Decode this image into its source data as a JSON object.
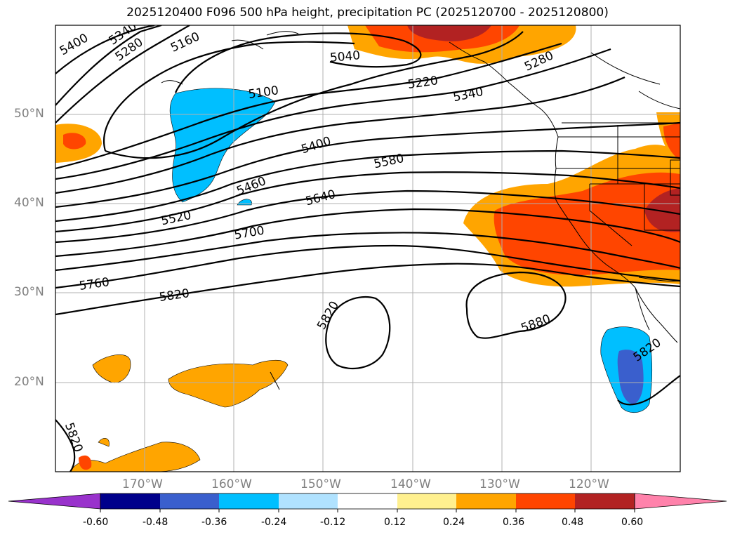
{
  "title": "2025120400 F096 500 hPa height, precipitation PC (2025120700 - 2025120800)",
  "lat_labels": [
    "50°N",
    "40°N",
    "30°N",
    "20°N"
  ],
  "lon_labels": [
    "170°W",
    "160°W",
    "150°W",
    "140°W",
    "130°W",
    "120°W"
  ],
  "colorbar": {
    "ticks": [
      "-0.60",
      "-0.48",
      "-0.36",
      "-0.24",
      "-0.12",
      "0.12",
      "0.24",
      "0.36",
      "0.48",
      "0.60"
    ],
    "colors": [
      "#9932cc",
      "#00008b",
      "#3a5fcd",
      "#00bfff",
      "#b0e2ff",
      "#ffffff",
      "#fff08f",
      "#ffa500",
      "#ff4500",
      "#b22222",
      "#ff82ab"
    ]
  },
  "contour_labels": {
    "c5400a": "5400",
    "c5340a": "5340",
    "c5280a": "5280",
    "c5160": "5160",
    "c5100": "5100",
    "c5040": "5040",
    "c5220": "5220",
    "c5340b": "5340",
    "c5280b": "5280",
    "c5400b": "5400",
    "c5580": "5580",
    "c5460": "5460",
    "c5640": "5640",
    "c5520": "5520",
    "c5700": "5700",
    "c5760": "5760",
    "c5820a": "5820",
    "c5820b": "5820",
    "c5880": "5880",
    "c5820c": "5820",
    "c5820d": "5820"
  }
}
